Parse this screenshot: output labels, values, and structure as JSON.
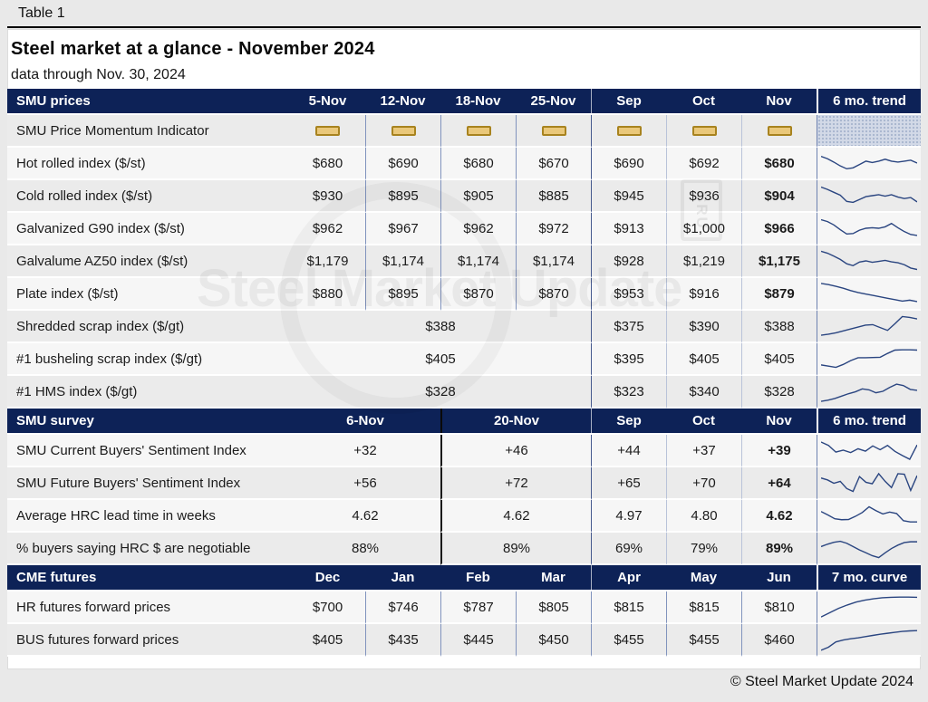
{
  "page": {
    "table_label": "Table 1",
    "title": "Steel market at a glance - November 2024",
    "subtitle": "data through Nov. 30, 2024",
    "footer": "© Steel Market Update 2024",
    "watermark_text": "Steel Market Update",
    "watermark_logo": "CRU"
  },
  "colors": {
    "header_navy": "#0d2257",
    "row_gray": "#ebebeb",
    "row_light": "#f6f6f6",
    "sparkline": "#2a4580",
    "momentum_chip_fill": "#eac87a",
    "momentum_chip_border": "#a8831f"
  },
  "table": {
    "sections": [
      {
        "id": "prices",
        "header": {
          "label": "SMU prices",
          "columns": [
            "5-Nov",
            "12-Nov",
            "18-Nov",
            "25-Nov",
            "Sep",
            "Oct",
            "Nov"
          ],
          "trend_label": "6 mo. trend"
        },
        "rows": [
          {
            "label": "SMU Price Momentum Indicator",
            "momentum": true,
            "trend_hatch": true
          },
          {
            "label": "Hot rolled index ($/st)",
            "values": [
              "$680",
              "$690",
              "$680",
              "$670",
              "$690",
              "$692",
              "$680"
            ],
            "bold_last": true,
            "spark": [
              22,
              32,
              46,
              62,
              74,
              70,
              56,
              42,
              48,
              42,
              34,
              42,
              46,
              42,
              38,
              50
            ]
          },
          {
            "label": "Cold rolled index ($/st)",
            "values": [
              "$930",
              "$895",
              "$905",
              "$885",
              "$945",
              "$936",
              "$904"
            ],
            "bold_last": true,
            "spark": [
              14,
              24,
              36,
              48,
              74,
              78,
              66,
              54,
              50,
              46,
              52,
              46,
              56,
              62,
              58,
              76
            ]
          },
          {
            "label": "Galvanized G90 index ($/st)",
            "values": [
              "$962",
              "$967",
              "$962",
              "$972",
              "$913",
              "$1,000",
              "$966"
            ],
            "bold_last": true,
            "spark": [
              14,
              22,
              36,
              56,
              74,
              72,
              58,
              50,
              48,
              50,
              44,
              30,
              48,
              64,
              76,
              80
            ]
          },
          {
            "label": "Galvalume AZ50 index ($/st)",
            "values": [
              "$1,179",
              "$1,174",
              "$1,174",
              "$1,174",
              "$928",
              "$1,219",
              "$1,175"
            ],
            "bold_last": true,
            "spark": [
              10,
              18,
              30,
              44,
              62,
              70,
              55,
              50,
              56,
              52,
              48,
              54,
              58,
              66,
              80,
              86
            ]
          },
          {
            "label": "Plate index ($/st)",
            "values": [
              "$880",
              "$895",
              "$870",
              "$870",
              "$953",
              "$916",
              "$879"
            ],
            "bold_last": true,
            "spark": [
              8,
              13,
              20,
              28,
              38,
              46,
              52,
              58,
              64,
              70,
              76,
              82,
              78,
              84
            ]
          },
          {
            "label": "Shredded scrap index ($/gt)",
            "merged_value": "$388",
            "values": [
              "$375",
              "$390",
              "$388"
            ],
            "spark": [
              88,
              84,
              78,
              70,
              62,
              54,
              46,
              44,
              56,
              68,
              40,
              10,
              14,
              20
            ]
          },
          {
            "label": "#1 busheling scrap index ($/gt)",
            "merged_value": "$405",
            "values": [
              "$395",
              "$405",
              "$405"
            ],
            "spark": [
              76,
              81,
              86,
              74,
              58,
              46,
              46,
              45,
              44,
              28,
              14,
              13,
              13,
              14
            ]
          },
          {
            "label": "#1 HMS index ($/gt)",
            "merged_value": "$328",
            "values": [
              "$323",
              "$340",
              "$328"
            ],
            "spark": [
              92,
              87,
              80,
              70,
              60,
              52,
              40,
              44,
              56,
              50,
              34,
              20,
              26,
              42,
              46
            ]
          }
        ]
      },
      {
        "id": "survey",
        "header": {
          "label": "SMU survey",
          "group_columns": [
            "6-Nov",
            "20-Nov"
          ],
          "columns": [
            "Sep",
            "Oct",
            "Nov"
          ],
          "trend_label": "6 mo. trend"
        },
        "rows": [
          {
            "label": "SMU Current Buyers' Sentiment Index",
            "group_values": [
              "+32",
              "+46"
            ],
            "values": [
              "+44",
              "+37",
              "+39"
            ],
            "bold_last": true,
            "spark": [
              16,
              30,
              58,
              50,
              60,
              44,
              54,
              32,
              48,
              30,
              55,
              72,
              88,
              28
            ]
          },
          {
            "label": "SMU Future Buyers' Sentiment Index",
            "group_values": [
              "+56",
              "+72"
            ],
            "values": [
              "+65",
              "+70",
              "+64"
            ],
            "bold_last": true,
            "spark": [
              30,
              38,
              52,
              44,
              74,
              86,
              24,
              48,
              54,
              12,
              44,
              70,
              12,
              14,
              82,
              20
            ]
          },
          {
            "label": "Average HRC lead time in weeks",
            "group_values": [
              "4.62",
              "4.62"
            ],
            "values": [
              "4.97",
              "4.80",
              "4.62"
            ],
            "bold_last": true,
            "spark": [
              34,
              48,
              64,
              68,
              67,
              54,
              38,
              14,
              30,
              44,
              36,
              42,
              72,
              77,
              77
            ]
          },
          {
            "label": "% buyers saying HRC $ are negotiable",
            "group_values": [
              "88%",
              "89%"
            ],
            "values": [
              "69%",
              "79%",
              "89%"
            ],
            "bold_last": true,
            "spark": [
              44,
              34,
              26,
              22,
              30,
              44,
              58,
              70,
              82,
              90,
              70,
              52,
              38,
              27,
              24,
              24
            ]
          }
        ]
      },
      {
        "id": "futures",
        "header": {
          "label": "CME futures",
          "columns": [
            "Dec",
            "Jan",
            "Feb",
            "Mar",
            "Apr",
            "May",
            "Jun"
          ],
          "trend_label": "7 mo. curve"
        },
        "rows": [
          {
            "label": "HR futures forward prices",
            "values": [
              "$700",
              "$746",
              "$787",
              "$805",
              "$815",
              "$815",
              "$810"
            ],
            "spark": [
              92,
              74,
              56,
              42,
              30,
              22,
              16,
              12,
              10,
              9,
              9,
              10
            ]
          },
          {
            "label": "BUS futures forward prices",
            "values": [
              "$405",
              "$435",
              "$445",
              "$450",
              "$455",
              "$455",
              "$460"
            ],
            "spark": [
              95,
              82,
              60,
              52,
              47,
              43,
              38,
              33,
              28,
              24,
              20,
              16,
              14,
              13
            ]
          }
        ]
      }
    ]
  }
}
